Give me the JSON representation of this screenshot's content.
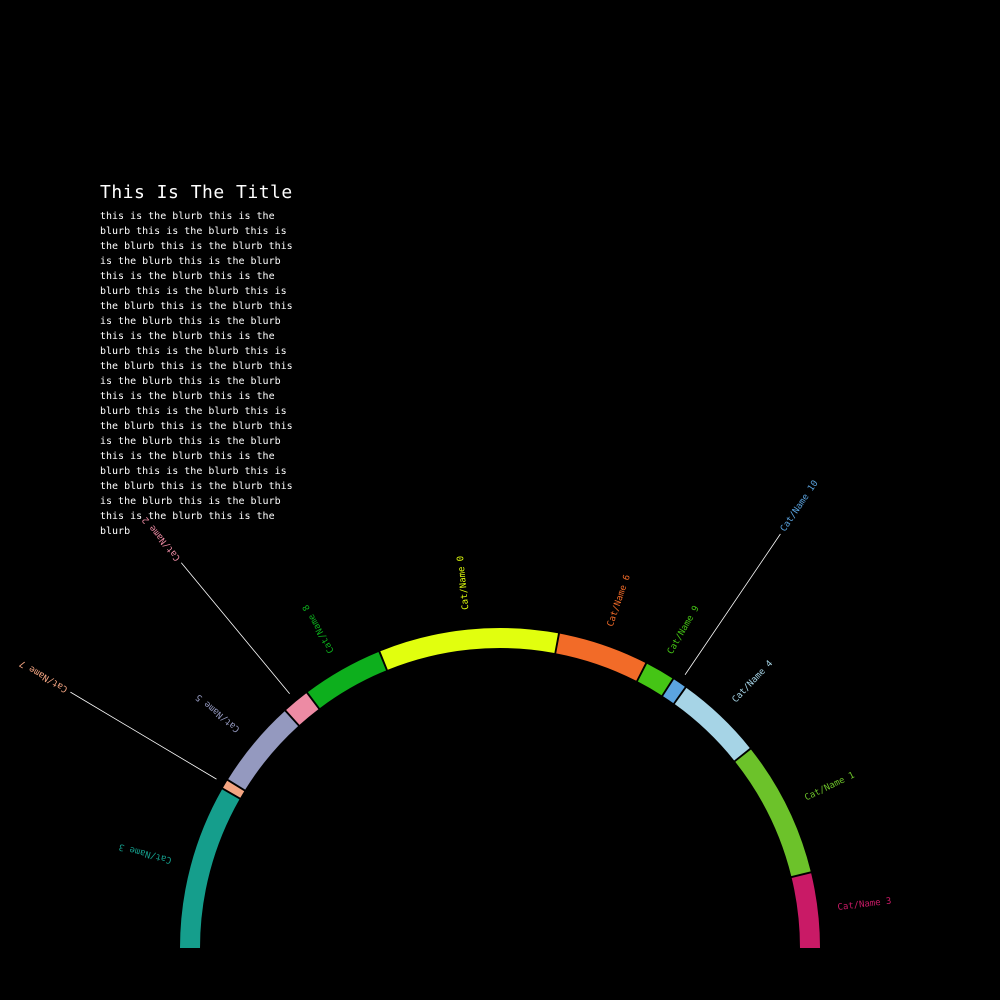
{
  "header": {
    "title": "This Is The Title",
    "blurb": "this is the blurb this is the blurb this is the blurb this is the blurb this is the blurb this is the blurb this is the blurb this is the blurb this is the blurb this is the blurb this is the blurb this is the blurb this is the blurb this is the blurb this is the blurb this is the blurb this is the blurb this is the blurb this is the blurb this is the blurb this is the blurb this is the blurb this is the blurb this is the blurb this is the blurb this is the blurb this is the blurb this is the blurb this is the blurb this is the blurb this is the blurb this is the blurb this is the blurb this is the blurb this is the blurb this is the blurb this is the blurb"
  },
  "chart_data": {
    "type": "pie",
    "variant": "semicircular arc (half donut)",
    "background": "#000000",
    "segments": [
      {
        "label": "Cat/Name 3",
        "value": 16.6,
        "color": "#159e8c",
        "callout": false
      },
      {
        "label": "Cat/Name 7",
        "value": 1.0,
        "color": "#f4a582",
        "callout": true
      },
      {
        "label": "Cat/Name 5",
        "value": 9.0,
        "color": "#9499bf",
        "callout": false
      },
      {
        "label": "Cat/Name 2",
        "value": 2.8,
        "color": "#ed8ba4",
        "callout": true
      },
      {
        "label": "Cat/Name 8",
        "value": 8.3,
        "color": "#0daf1d",
        "callout": false
      },
      {
        "label": "Cat/Name 0",
        "value": 18.2,
        "color": "#e1ff0e",
        "callout": false
      },
      {
        "label": "Cat/Name 6",
        "value": 9.2,
        "color": "#f26b28",
        "callout": false
      },
      {
        "label": "Cat/Name 9",
        "value": 3.1,
        "color": "#45c515",
        "callout": false
      },
      {
        "label": "Cat/Name 10",
        "value": 1.5,
        "color": "#5ba4e0",
        "callout": true
      },
      {
        "label": "Cat/Name 4",
        "value": 8.9,
        "color": "#a6d4e6",
        "callout": false
      },
      {
        "label": "Cat/Name 1",
        "value": 13.8,
        "color": "#6cc22a",
        "callout": false
      },
      {
        "label": "Cat/Name 3",
        "value": 7.6,
        "color": "#c91a66",
        "callout": false
      }
    ]
  }
}
